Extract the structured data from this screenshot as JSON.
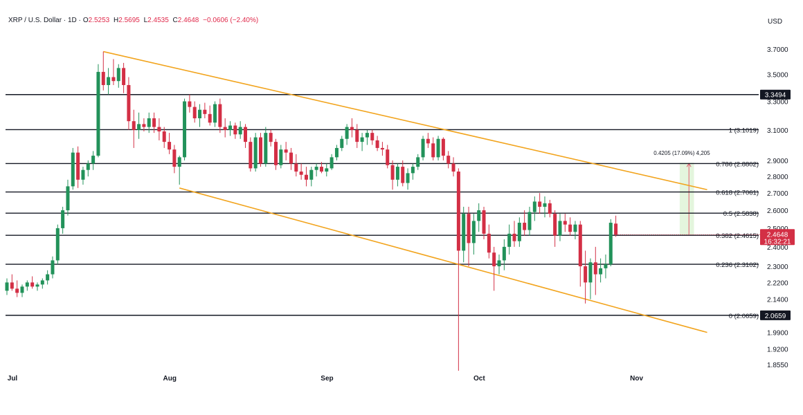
{
  "header": {
    "symbol": "XRP / U.S. Dollar · 1D ·",
    "o_label": "O",
    "o_value": "2.5253",
    "h_label": "H",
    "h_value": "2.5695",
    "l_label": "L",
    "l_value": "2.4535",
    "c_label": "C",
    "c_value": "2.4648",
    "change": "−0.0606 (−2.40%)"
  },
  "currency": "USD",
  "chart_data": {
    "type": "candlestick",
    "title": "XRP / U.S. Dollar · 1D",
    "x_ticks": [
      {
        "label": "Jul",
        "day": 0
      },
      {
        "label": "Aug",
        "day": 31
      },
      {
        "label": "Sep",
        "day": 62
      },
      {
        "label": "Oct",
        "day": 92
      },
      {
        "label": "Nov",
        "day": 123
      }
    ],
    "y_axis": {
      "unit": "USD",
      "range": [
        1.82,
        3.8
      ],
      "scale": "log",
      "ticks": [
        "3.7000",
        "3.5000",
        "3.3000",
        "3.1000",
        "2.9000",
        "2.8000",
        "2.7000",
        "2.6000",
        "2.5000",
        "2.4000",
        "2.3000",
        "2.2200",
        "2.1400",
        "2.0700",
        "1.9900",
        "1.9200",
        "1.8550"
      ]
    },
    "horizontal_levels": [
      {
        "value": 3.3494,
        "label": "",
        "tag": "3.3494"
      },
      {
        "value": 3.1019,
        "label": "1 (3.1019)"
      },
      {
        "value": 2.8802,
        "label": "0.786 (2.8802)"
      },
      {
        "value": 2.7061,
        "label": "0.618 (2.7061)"
      },
      {
        "value": 2.5838,
        "label": "0.5 (2.5838)"
      },
      {
        "value": 2.4615,
        "label": "0.382 (2.4615)"
      },
      {
        "value": 2.3102,
        "label": "0.236 (2.3102)"
      },
      {
        "value": 2.0659,
        "label": "0 (2.0659)",
        "tag": "2.0659"
      }
    ],
    "trendlines": [
      {
        "name": "upper",
        "color": "#f2a41d",
        "from": {
          "day": 19,
          "price": 3.68
        },
        "to": {
          "day": 138,
          "price": 2.72
        }
      },
      {
        "name": "lower",
        "color": "#f2a41d",
        "from": {
          "day": 34,
          "price": 2.73
        },
        "to": {
          "day": 138,
          "price": 1.99
        }
      }
    ],
    "measure": {
      "from_day": 133,
      "to_day": 135,
      "from_price": 2.4648,
      "to_price": 2.8853,
      "label": "0.4205 (17.09%) 4,205"
    },
    "last_price": {
      "value": 2.4648,
      "label": "2.4648",
      "countdown": "16:32:21",
      "color": "#d32f45"
    },
    "candles": [
      [
        2.18,
        2.24,
        2.16,
        2.22
      ],
      [
        2.22,
        2.26,
        2.18,
        2.19
      ],
      [
        2.19,
        2.23,
        2.15,
        2.17
      ],
      [
        2.17,
        2.21,
        2.15,
        2.2
      ],
      [
        2.2,
        2.23,
        2.18,
        2.22
      ],
      [
        2.22,
        2.25,
        2.19,
        2.2
      ],
      [
        2.2,
        2.22,
        2.18,
        2.21
      ],
      [
        2.21,
        2.24,
        2.19,
        2.23
      ],
      [
        2.23,
        2.28,
        2.21,
        2.26
      ],
      [
        2.26,
        2.35,
        2.24,
        2.33
      ],
      [
        2.33,
        2.52,
        2.31,
        2.5
      ],
      [
        2.5,
        2.62,
        2.47,
        2.6
      ],
      [
        2.6,
        2.78,
        2.57,
        2.74
      ],
      [
        2.74,
        2.98,
        2.72,
        2.95
      ],
      [
        2.95,
        2.99,
        2.73,
        2.78
      ],
      [
        2.78,
        2.86,
        2.75,
        2.84
      ],
      [
        2.84,
        2.9,
        2.8,
        2.88
      ],
      [
        2.88,
        2.96,
        2.84,
        2.93
      ],
      [
        2.93,
        3.58,
        2.92,
        3.52
      ],
      [
        3.52,
        3.68,
        3.38,
        3.42
      ],
      [
        3.42,
        3.55,
        3.35,
        3.48
      ],
      [
        3.48,
        3.62,
        3.42,
        3.45
      ],
      [
        3.45,
        3.58,
        3.4,
        3.55
      ],
      [
        3.55,
        3.59,
        3.36,
        3.42
      ],
      [
        3.42,
        3.48,
        3.1,
        3.16
      ],
      [
        3.16,
        3.24,
        2.98,
        3.1
      ],
      [
        3.1,
        3.22,
        3.04,
        3.14
      ],
      [
        3.14,
        3.18,
        3.09,
        3.12
      ],
      [
        3.12,
        3.22,
        3.08,
        3.18
      ],
      [
        3.18,
        3.22,
        3.08,
        3.12
      ],
      [
        3.12,
        3.18,
        3.03,
        3.09
      ],
      [
        3.09,
        3.12,
        2.98,
        3.02
      ],
      [
        3.02,
        3.08,
        2.94,
        2.97
      ],
      [
        2.97,
        3.0,
        2.82,
        2.86
      ],
      [
        2.86,
        2.93,
        2.75,
        2.92
      ],
      [
        2.92,
        3.32,
        2.9,
        3.3
      ],
      [
        3.3,
        3.35,
        3.22,
        3.26
      ],
      [
        3.26,
        3.3,
        3.15,
        3.18
      ],
      [
        3.18,
        3.28,
        3.12,
        3.24
      ],
      [
        3.24,
        3.29,
        3.18,
        3.21
      ],
      [
        3.21,
        3.27,
        3.13,
        3.15
      ],
      [
        3.15,
        3.3,
        3.12,
        3.28
      ],
      [
        3.28,
        3.32,
        3.08,
        3.12
      ],
      [
        3.12,
        3.18,
        3.05,
        3.1
      ],
      [
        3.1,
        3.16,
        3.06,
        3.13
      ],
      [
        3.13,
        3.15,
        3.04,
        3.07
      ],
      [
        3.07,
        3.16,
        3.04,
        3.12
      ],
      [
        3.12,
        3.14,
        2.98,
        3.02
      ],
      [
        3.02,
        3.05,
        2.83,
        2.85
      ],
      [
        2.85,
        3.08,
        2.83,
        3.05
      ],
      [
        3.05,
        3.08,
        2.86,
        2.88
      ],
      [
        2.88,
        3.12,
        2.86,
        3.08
      ],
      [
        3.08,
        3.1,
        2.99,
        3.02
      ],
      [
        3.02,
        3.04,
        2.84,
        2.87
      ],
      [
        2.87,
        3.0,
        2.85,
        2.97
      ],
      [
        2.97,
        3.02,
        2.9,
        2.95
      ],
      [
        2.95,
        2.98,
        2.84,
        2.88
      ],
      [
        2.88,
        2.94,
        2.8,
        2.83
      ],
      [
        2.83,
        2.88,
        2.78,
        2.81
      ],
      [
        2.81,
        2.86,
        2.74,
        2.78
      ],
      [
        2.78,
        2.86,
        2.74,
        2.84
      ],
      [
        2.84,
        2.88,
        2.8,
        2.86
      ],
      [
        2.86,
        2.89,
        2.82,
        2.83
      ],
      [
        2.83,
        2.88,
        2.8,
        2.85
      ],
      [
        2.85,
        2.94,
        2.84,
        2.92
      ],
      [
        2.92,
        3.0,
        2.9,
        2.98
      ],
      [
        2.98,
        3.06,
        2.96,
        3.04
      ],
      [
        3.04,
        3.14,
        3.0,
        3.12
      ],
      [
        3.12,
        3.18,
        3.05,
        3.1
      ],
      [
        3.1,
        3.14,
        2.98,
        3.02
      ],
      [
        3.02,
        3.08,
        2.96,
        3.05
      ],
      [
        3.05,
        3.1,
        3.0,
        3.08
      ],
      [
        3.08,
        3.1,
        3.0,
        3.03
      ],
      [
        3.03,
        3.06,
        2.96,
        2.98
      ],
      [
        2.98,
        3.02,
        2.93,
        2.97
      ],
      [
        2.97,
        3.0,
        2.85,
        2.87
      ],
      [
        2.87,
        2.9,
        2.72,
        2.78
      ],
      [
        2.78,
        2.88,
        2.74,
        2.86
      ],
      [
        2.86,
        2.9,
        2.74,
        2.76
      ],
      [
        2.76,
        2.85,
        2.72,
        2.82
      ],
      [
        2.82,
        2.88,
        2.78,
        2.86
      ],
      [
        2.86,
        2.94,
        2.84,
        2.92
      ],
      [
        2.92,
        3.06,
        2.9,
        3.04
      ],
      [
        3.04,
        3.08,
        2.98,
        3.01
      ],
      [
        3.01,
        3.05,
        2.9,
        2.92
      ],
      [
        2.92,
        3.06,
        2.9,
        3.04
      ],
      [
        3.04,
        3.05,
        2.9,
        2.93
      ],
      [
        2.93,
        2.96,
        2.85,
        2.88
      ],
      [
        2.88,
        2.92,
        2.8,
        2.83
      ],
      [
        2.83,
        2.85,
        1.83,
        2.38
      ],
      [
        2.38,
        2.62,
        2.32,
        2.58
      ],
      [
        2.58,
        2.62,
        2.3,
        2.42
      ],
      [
        2.42,
        2.58,
        2.36,
        2.54
      ],
      [
        2.54,
        2.64,
        2.48,
        2.6
      ],
      [
        2.6,
        2.62,
        2.44,
        2.47
      ],
      [
        2.47,
        2.52,
        2.34,
        2.37
      ],
      [
        2.37,
        2.4,
        2.18,
        2.3
      ],
      [
        2.3,
        2.36,
        2.26,
        2.33
      ],
      [
        2.33,
        2.44,
        2.28,
        2.4
      ],
      [
        2.4,
        2.52,
        2.36,
        2.47
      ],
      [
        2.47,
        2.54,
        2.4,
        2.43
      ],
      [
        2.43,
        2.56,
        2.4,
        2.53
      ],
      [
        2.53,
        2.6,
        2.46,
        2.49
      ],
      [
        2.49,
        2.62,
        2.46,
        2.59
      ],
      [
        2.59,
        2.68,
        2.54,
        2.65
      ],
      [
        2.65,
        2.7,
        2.58,
        2.62
      ],
      [
        2.62,
        2.68,
        2.56,
        2.64
      ],
      [
        2.64,
        2.66,
        2.56,
        2.58
      ],
      [
        2.58,
        2.6,
        2.4,
        2.46
      ],
      [
        2.46,
        2.58,
        2.43,
        2.54
      ],
      [
        2.54,
        2.58,
        2.48,
        2.52
      ],
      [
        2.52,
        2.56,
        2.46,
        2.48
      ],
      [
        2.48,
        2.54,
        2.44,
        2.52
      ],
      [
        2.52,
        2.54,
        2.2,
        2.3
      ],
      [
        2.3,
        2.38,
        2.12,
        2.22
      ],
      [
        2.22,
        2.34,
        2.14,
        2.32
      ],
      [
        2.32,
        2.4,
        2.16,
        2.26
      ],
      [
        2.26,
        2.34,
        2.22,
        2.29
      ],
      [
        2.29,
        2.36,
        2.24,
        2.31
      ],
      [
        2.31,
        2.55,
        2.3,
        2.53
      ],
      [
        2.5253,
        2.5695,
        2.4535,
        2.4648
      ]
    ]
  },
  "colors": {
    "up": "#22925a",
    "down": "#d32f45",
    "trend": "#f2a41d",
    "level": "#131722",
    "measure_fill": "#e4f5dd",
    "measure_arrow": "#e05a6c"
  }
}
